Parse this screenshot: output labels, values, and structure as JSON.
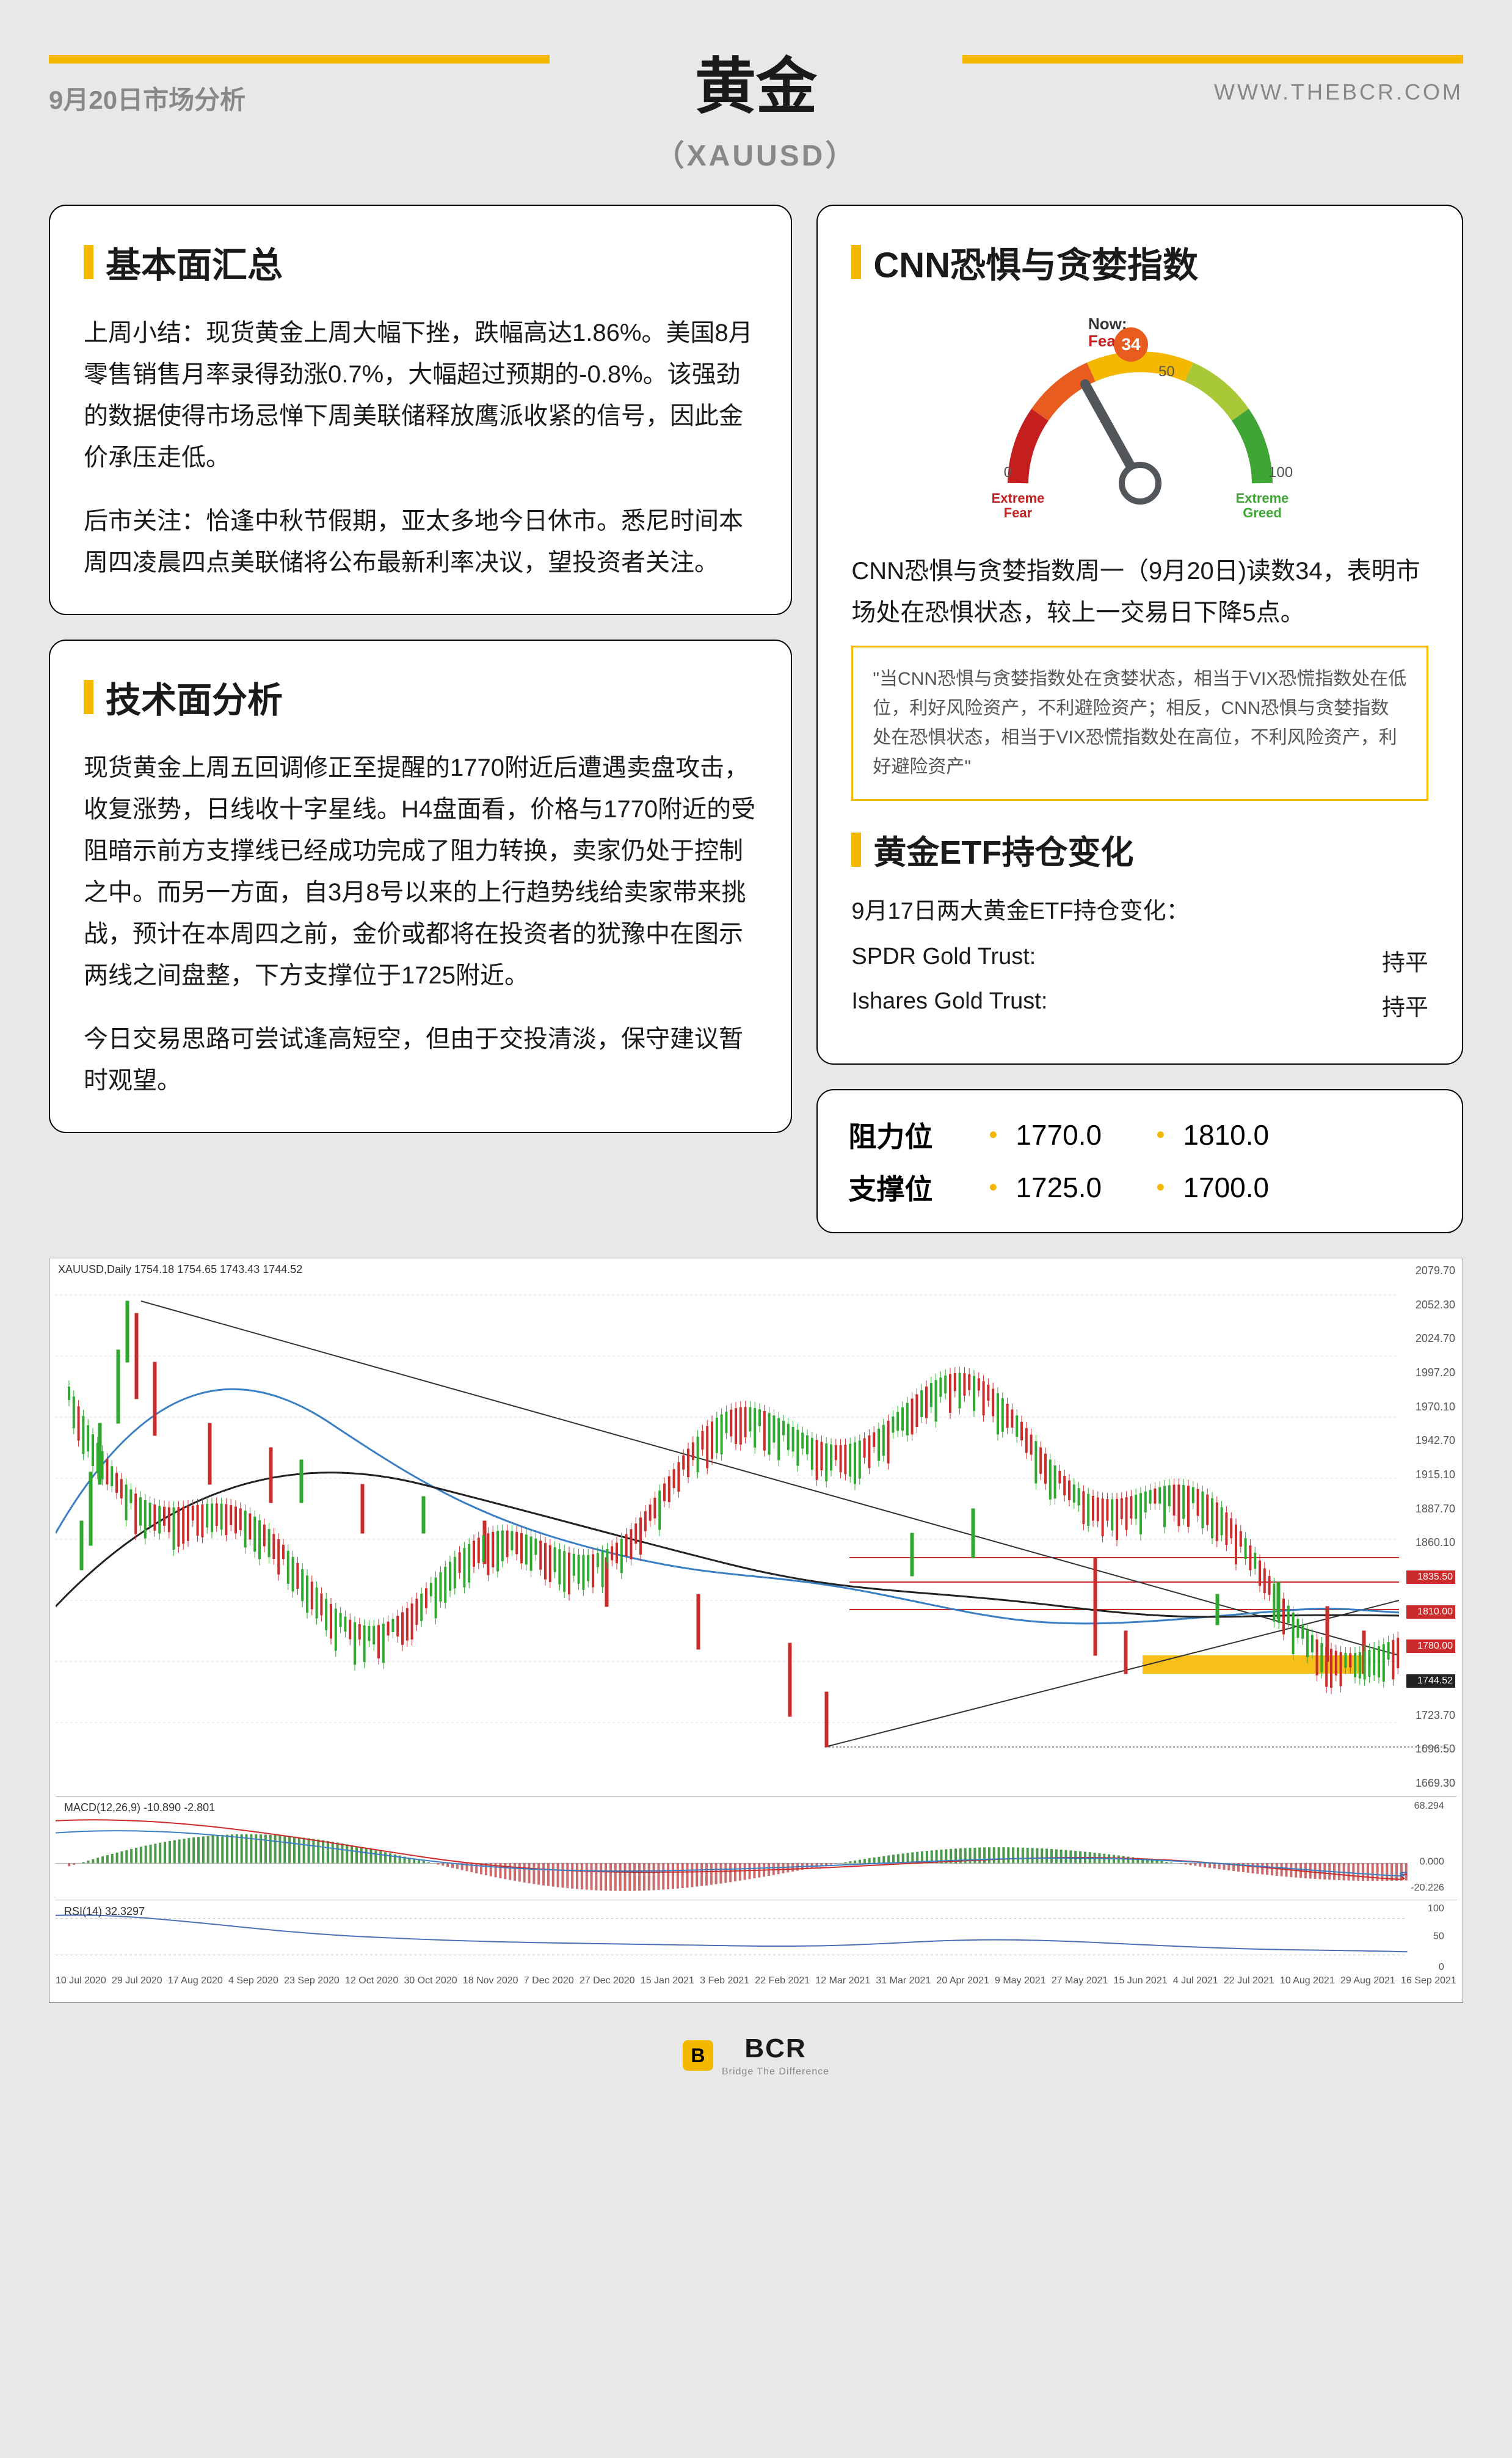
{
  "header": {
    "date": "9月20日市场分析",
    "title": "黄金",
    "symbol": "（XAUUSD）",
    "url": "WWW.THEBCR.COM"
  },
  "fundamentals": {
    "title": "基本面汇总",
    "p1": "上周小结：现货黄金上周大幅下挫，跌幅高达1.86%。美国8月零售销售月率录得劲涨0.7%，大幅超过预期的-0.8%。该强劲的数据使得市场忌惮下周美联储释放鹰派收紧的信号，因此金价承压走低。",
    "p2": "后市关注：恰逢中秋节假期，亚太多地今日休市。悉尼时间本周四凌晨四点美联储将公布最新利率决议，望投资者关注。"
  },
  "technical": {
    "title": "技术面分析",
    "p1": "现货黄金上周五回调修正至提醒的1770附近后遭遇卖盘攻击，收复涨势，日线收十字星线。H4盘面看，价格与1770附近的受阻暗示前方支撑线已经成功完成了阻力转换，卖家仍处于控制之中。而另一方面，自3月8号以来的上行趋势线给卖家带来挑战，预计在本周四之前，金价或都将在投资者的犹豫中在图示两线之间盘整，下方支撑位于1725附近。",
    "p2": "今日交易思路可尝试逢高短空，但由于交投清淡，保守建议暂时观望。"
  },
  "fear_greed": {
    "title": "CNN恐惧与贪婪指数",
    "gauge": {
      "now_label": "Now:",
      "now_word": "Fear",
      "value": 34,
      "min": 0,
      "mid": 50,
      "max": 100,
      "left_label_top": "Extreme",
      "left_label_bot": "Fear",
      "right_label_top": "Extreme",
      "right_label_bot": "Greed",
      "arc_colors": [
        "#c41e1e",
        "#e85c1f",
        "#f5b800",
        "#a8c837",
        "#3fa535"
      ],
      "needle_color": "#52565a",
      "bg": "#ffffff"
    },
    "summary": "CNN恐惧与贪婪指数周一（9月20日)读数34，表明市场处在恐惧状态，较上一交易日下降5点。",
    "quote": "\"当CNN恐惧与贪婪指数处在贪婪状态，相当于VIX恐慌指数处在低位，利好风险资产，不利避险资产；相反，CNN恐惧与贪婪指数处在恐惧状态，相当于VIX恐慌指数处在高位，不利风险资产，利好避险资产\""
  },
  "etf": {
    "title": "黄金ETF持仓变化",
    "date_line": "9月17日两大黄金ETF持仓变化：",
    "rows": [
      {
        "name": "SPDR Gold Trust:",
        "value": "持平"
      },
      {
        "name": "Ishares Gold Trust:",
        "value": "持平"
      }
    ]
  },
  "levels": {
    "resistance_label": "阻力位",
    "support_label": "支撑位",
    "resistance": [
      "1770.0",
      "1810.0"
    ],
    "support": [
      "1725.0",
      "1700.0"
    ],
    "dot_color": "#f5b800"
  },
  "chart": {
    "title_text": "XAUUSD,Daily 1754.18 1754.65 1743.43 1744.52",
    "macd_label": "MACD(12,26,9) -10.890 -2.801",
    "rsi_label": "RSI(14) 32.3297",
    "y_ticks": [
      "2079.70",
      "2052.30",
      "2024.70",
      "1997.20",
      "1970.10",
      "1942.70",
      "1915.10",
      "1887.70",
      "1860.10",
      "1835.50",
      "1810.00",
      "1780.00",
      "1744.52",
      "1723.70",
      "1696.50",
      "1669.30"
    ],
    "y_highlight_colors": {
      "1835.50": "#cc2b2b",
      "1810.00": "#cc2b2b",
      "1780.00": "#cc2b2b",
      "1744.52": "#222222"
    },
    "x_ticks": [
      "10 Jul 2020",
      "29 Jul 2020",
      "17 Aug 2020",
      "4 Sep 2020",
      "23 Sep 2020",
      "12 Oct 2020",
      "30 Oct 2020",
      "18 Nov 2020",
      "7 Dec 2020",
      "27 Dec 2020",
      "15 Jan 2021",
      "3 Feb 2021",
      "22 Feb 2021",
      "12 Mar 2021",
      "31 Mar 2021",
      "20 Apr 2021",
      "9 May 2021",
      "27 May 2021",
      "15 Jun 2021",
      "4 Jul 2021",
      "22 Jul 2021",
      "10 Aug 2021",
      "29 Aug 2021",
      "16 Sep 2021"
    ],
    "macd_y": [
      "68.294",
      "0.000",
      "-20.226"
    ],
    "rsi_y": [
      "100",
      "50",
      "0"
    ],
    "colors": {
      "candle_up": "#2ea82e",
      "candle_down": "#cc2b2b",
      "ma1": "#3a7fc4",
      "ma2": "#222222",
      "trendline": "#333333",
      "support_box": "#f5b800",
      "macd_hist_up": "#4a9a4a",
      "macd_hist_down": "#cc6b6b",
      "macd_line": "#cc2b2b",
      "macd_signal": "#3a7fc4",
      "rsi_line": "#4a6fb5",
      "grid": "#d8d8d8"
    }
  },
  "footer": {
    "brand": "BCR",
    "tagline": "Bridge The Difference"
  },
  "theme": {
    "accent": "#f5b800",
    "card_border": "#000000",
    "bg": "#e8e8e8",
    "text": "#1a1a1a",
    "muted": "#888888"
  }
}
